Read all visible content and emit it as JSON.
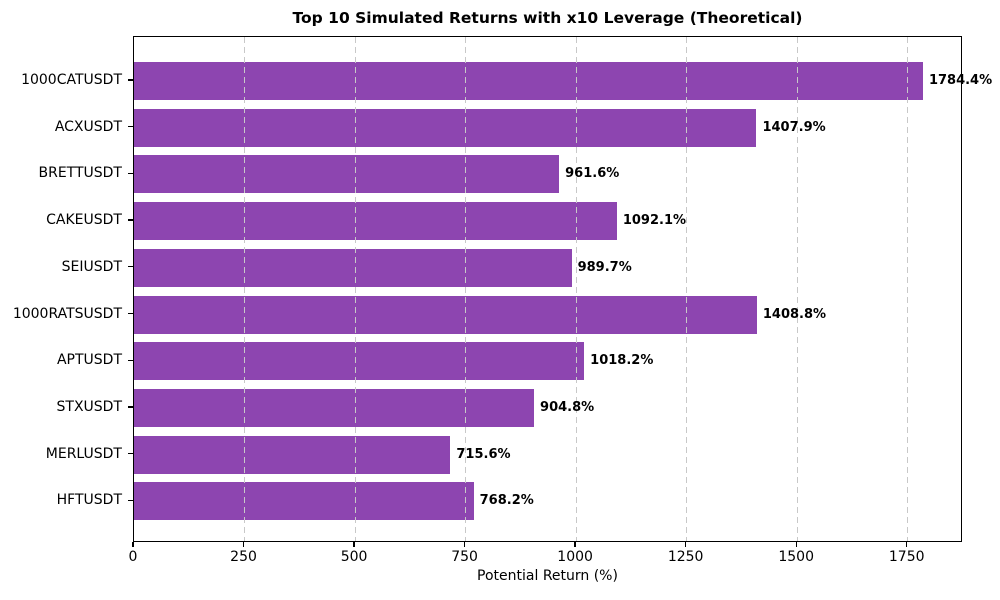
{
  "chart_data": {
    "type": "bar",
    "orientation": "horizontal",
    "title": "Top 10 Simulated Returns with x10 Leverage (Theoretical)",
    "xlabel": "Potential Return (%)",
    "categories": [
      "1000CATUSDT",
      "ACXUSDT",
      "BRETTUSDT",
      "CAKEUSDT",
      "SEIUSDT",
      "1000RATSUSDT",
      "APTUSDT",
      "STXUSDT",
      "MERLUSDT",
      "HFTUSDT"
    ],
    "values": [
      1784.4,
      1407.9,
      961.6,
      1092.1,
      989.7,
      1408.8,
      1018.2,
      904.8,
      715.6,
      768.2
    ],
    "value_labels": [
      "1784.4%",
      "1407.9%",
      "961.6%",
      "1092.1%",
      "989.7%",
      "1408.8%",
      "1018.2%",
      "904.8%",
      "715.6%",
      "768.2%"
    ],
    "xlim": [
      0,
      1875
    ],
    "x_ticks": [
      0,
      250,
      500,
      750,
      1000,
      1250,
      1500,
      1750
    ],
    "x_tick_labels": [
      "0",
      "250",
      "500",
      "750",
      "1000",
      "1250",
      "1500",
      "1750"
    ],
    "grid": "vertical-dashed-above-bars",
    "legend": "none",
    "bar_color": "#8d45b0",
    "grid_color": "#c8c8c8",
    "text_color": "#000000",
    "background_color": "#ffffff"
  }
}
